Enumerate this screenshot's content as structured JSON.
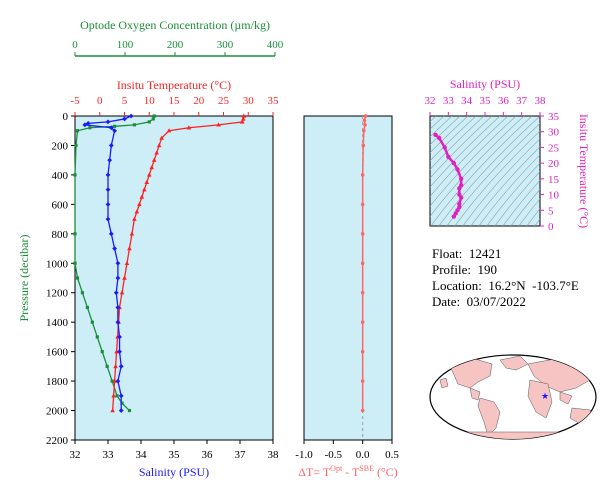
{
  "colors": {
    "oxygen": "#1a8f3a",
    "temperature": "#ff2222",
    "salinity": "#1a1aff",
    "delta": "#ff6666",
    "ts": "#e020c0",
    "panel_bg": "#cdeef7",
    "land": "#f7c4c4",
    "ocean": "#ffffff"
  },
  "chart_data": [
    {
      "type": "line",
      "id": "main-profile",
      "ylabel": "Pressure (decibar)",
      "ylim": [
        0,
        2200
      ],
      "y_ticks": [
        0,
        200,
        400,
        600,
        800,
        1000,
        1200,
        1400,
        1600,
        1800,
        2000,
        2200
      ],
      "axes": {
        "oxygen": {
          "label": "Optode Oxygen Concentration (µm/kg)",
          "range": [
            0,
            400
          ],
          "ticks": [
            "0",
            "100",
            "200",
            "300",
            "400"
          ]
        },
        "temperature": {
          "label": "Insitu Temperature (°C)",
          "range": [
            -5,
            35
          ],
          "ticks": [
            "-5",
            "0",
            "5",
            "10",
            "15",
            "20",
            "25",
            "30",
            "35"
          ]
        },
        "salinity": {
          "label": "Salinity (PSU)",
          "range": [
            32,
            38
          ],
          "ticks": [
            "32",
            "33",
            "34",
            "35",
            "36",
            "37",
            "38"
          ]
        }
      },
      "series": [
        {
          "key": "oxygen",
          "points": [
            [
              160,
              0
            ],
            [
              158,
              20
            ],
            [
              150,
              40
            ],
            [
              120,
              60
            ],
            [
              80,
              70
            ],
            [
              30,
              80
            ],
            [
              5,
              100
            ],
            [
              2,
              200
            ],
            [
              0,
              400
            ],
            [
              0,
              800
            ],
            [
              0,
              1000
            ],
            [
              5,
              1100
            ],
            [
              15,
              1200
            ],
            [
              25,
              1300
            ],
            [
              35,
              1400
            ],
            [
              45,
              1500
            ],
            [
              55,
              1600
            ],
            [
              65,
              1700
            ],
            [
              75,
              1800
            ],
            [
              85,
              1900
            ],
            [
              95,
              1950
            ],
            [
              110,
              2000
            ]
          ]
        },
        {
          "key": "temperature",
          "points": [
            [
              29.1,
              0
            ],
            [
              29.0,
              20
            ],
            [
              28.8,
              40
            ],
            [
              24.0,
              60
            ],
            [
              18.0,
              80
            ],
            [
              14.0,
              100
            ],
            [
              12.5,
              150
            ],
            [
              12.0,
              200
            ],
            [
              11.5,
              250
            ],
            [
              11.0,
              300
            ],
            [
              10.5,
              350
            ],
            [
              10.0,
              400
            ],
            [
              9.5,
              450
            ],
            [
              9.0,
              500
            ],
            [
              8.5,
              550
            ],
            [
              8.0,
              600
            ],
            [
              7.5,
              650
            ],
            [
              7.0,
              700
            ],
            [
              6.5,
              800
            ],
            [
              6.0,
              900
            ],
            [
              5.5,
              1000
            ],
            [
              5.0,
              1100
            ],
            [
              4.5,
              1200
            ],
            [
              4.0,
              1300
            ],
            [
              3.8,
              1400
            ],
            [
              3.6,
              1500
            ],
            [
              3.4,
              1600
            ],
            [
              3.2,
              1700
            ],
            [
              3.0,
              1800
            ],
            [
              2.8,
              1900
            ],
            [
              2.6,
              2000
            ]
          ]
        },
        {
          "key": "salinity",
          "points": [
            [
              33.7,
              0
            ],
            [
              33.5,
              20
            ],
            [
              33.0,
              40
            ],
            [
              32.4,
              50
            ],
            [
              32.3,
              60
            ],
            [
              33.1,
              80
            ],
            [
              33.2,
              100
            ],
            [
              33.1,
              200
            ],
            [
              33.05,
              300
            ],
            [
              33.0,
              400
            ],
            [
              33.0,
              500
            ],
            [
              33.0,
              600
            ],
            [
              33.0,
              700
            ],
            [
              33.1,
              800
            ],
            [
              33.2,
              900
            ],
            [
              33.3,
              1000
            ],
            [
              33.3,
              1100
            ],
            [
              33.25,
              1200
            ],
            [
              33.3,
              1300
            ],
            [
              33.3,
              1400
            ],
            [
              33.35,
              1500
            ],
            [
              33.35,
              1600
            ],
            [
              33.4,
              1700
            ],
            [
              33.3,
              1800
            ],
            [
              33.4,
              1900
            ],
            [
              33.4,
              2000
            ]
          ]
        }
      ]
    },
    {
      "type": "line",
      "id": "delta-t",
      "xlabel": "ΔT= T^Opt - T^SBE (°C)",
      "xlim": [
        -1.0,
        0.5
      ],
      "x_ticks": [
        "-1.0",
        "-0.5",
        "0.0",
        "0.5"
      ],
      "ylim": [
        0,
        2200
      ],
      "points": [
        [
          0.05,
          0
        ],
        [
          0.03,
          30
        ],
        [
          0.04,
          60
        ],
        [
          0.02,
          100
        ],
        [
          0.01,
          200
        ],
        [
          0.0,
          400
        ],
        [
          0.0,
          600
        ],
        [
          0.0,
          800
        ],
        [
          0.0,
          1000
        ],
        [
          0.0,
          1200
        ],
        [
          0.0,
          1400
        ],
        [
          0.0,
          1600
        ],
        [
          0.0,
          1800
        ],
        [
          0.0,
          2000
        ]
      ]
    },
    {
      "type": "scatter",
      "id": "ts-diagram",
      "xlabel": "Salinity (PSU)",
      "ylabel": "Insitu Temperature (°C)",
      "xlim": [
        32,
        38
      ],
      "ylim": [
        0,
        35
      ],
      "x_ticks": [
        "32",
        "33",
        "34",
        "35",
        "36",
        "37",
        "38"
      ],
      "y_ticks": [
        "0",
        "5",
        "10",
        "15",
        "20",
        "25",
        "30",
        "35"
      ],
      "points": [
        [
          32.3,
          29.0
        ],
        [
          32.5,
          28.0
        ],
        [
          32.8,
          25.0
        ],
        [
          33.0,
          22.0
        ],
        [
          33.3,
          20.0
        ],
        [
          33.5,
          18.0
        ],
        [
          33.7,
          15.0
        ],
        [
          33.7,
          13.0
        ],
        [
          33.6,
          12.0
        ],
        [
          33.6,
          10.0
        ],
        [
          33.7,
          9.0
        ],
        [
          33.6,
          7.0
        ],
        [
          33.6,
          6.0
        ],
        [
          33.5,
          5.0
        ],
        [
          33.4,
          4.0
        ],
        [
          33.3,
          3.0
        ]
      ]
    }
  ],
  "info": {
    "float": "Float:  12421",
    "profile": "Profile:  190",
    "location": "Location:  16.2°N  -103.7°E",
    "date": "Date:  03/07/2022"
  },
  "map": {
    "marker": "★"
  }
}
